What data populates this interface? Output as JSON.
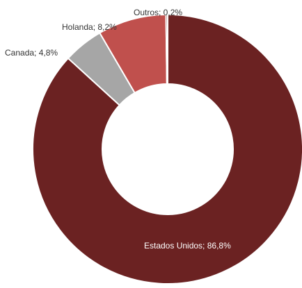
{
  "chart_data": {
    "type": "pie",
    "variant": "donut",
    "start": "top",
    "direction": "clockwise",
    "legend": "none",
    "slices": [
      {
        "label": "Estados Unidos; 86,8%",
        "name": "Estados Unidos",
        "value": 86.8,
        "color": "#6b2222"
      },
      {
        "label": "Canada; 4,8%",
        "name": "Canada",
        "value": 4.8,
        "color": "#a6a6a6"
      },
      {
        "label": "Holanda; 8,2%",
        "name": "Holanda",
        "value": 8.2,
        "color": "#c0504d"
      },
      {
        "label": "Outros; 0,2%",
        "name": "Outros",
        "value": 0.2,
        "color": "#6b2222"
      }
    ]
  }
}
